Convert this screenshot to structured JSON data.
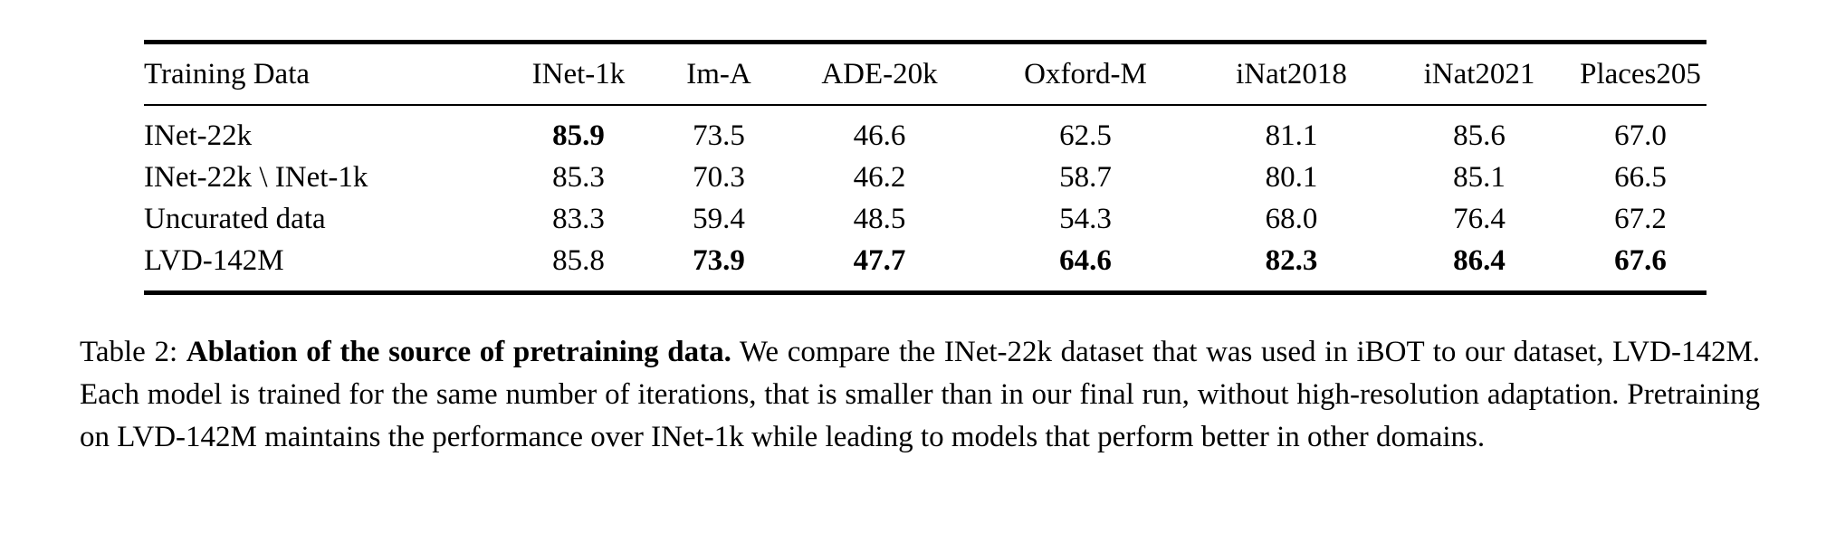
{
  "table": {
    "columns": [
      "Training Data",
      "INet-1k",
      "Im-A",
      "ADE-20k",
      "Oxford-M",
      "iNat2018",
      "iNat2021",
      "Places205"
    ],
    "rows": [
      {
        "label": "INet-22k",
        "values": [
          "85.9",
          "73.5",
          "46.6",
          "62.5",
          "81.1",
          "85.6",
          "67.0"
        ],
        "bold": [
          true,
          false,
          false,
          false,
          false,
          false,
          false
        ]
      },
      {
        "label": "INet-22k \\ INet-1k",
        "values": [
          "85.3",
          "70.3",
          "46.2",
          "58.7",
          "80.1",
          "85.1",
          "66.5"
        ],
        "bold": [
          false,
          false,
          false,
          false,
          false,
          false,
          false
        ]
      },
      {
        "label": "Uncurated data",
        "values": [
          "83.3",
          "59.4",
          "48.5",
          "54.3",
          "68.0",
          "76.4",
          "67.2"
        ],
        "bold": [
          false,
          false,
          false,
          false,
          false,
          false,
          false
        ]
      },
      {
        "label": "LVD-142M",
        "values": [
          "85.8",
          "73.9",
          "47.7",
          "64.6",
          "82.3",
          "86.4",
          "67.6"
        ],
        "bold": [
          false,
          true,
          true,
          true,
          true,
          true,
          true
        ]
      }
    ]
  },
  "caption": {
    "tag": "Table 2:",
    "bold_title": "Ablation of the source of pretraining data.",
    "body": "We compare the INet-22k dataset that was used in iBOT to our dataset, LVD-142M. Each model is trained for the same number of iterations, that is smaller than in our final run, without high-resolution adaptation. Pretraining on LVD-142M maintains the performance over INet-1k while leading to models that perform better in other domains."
  }
}
